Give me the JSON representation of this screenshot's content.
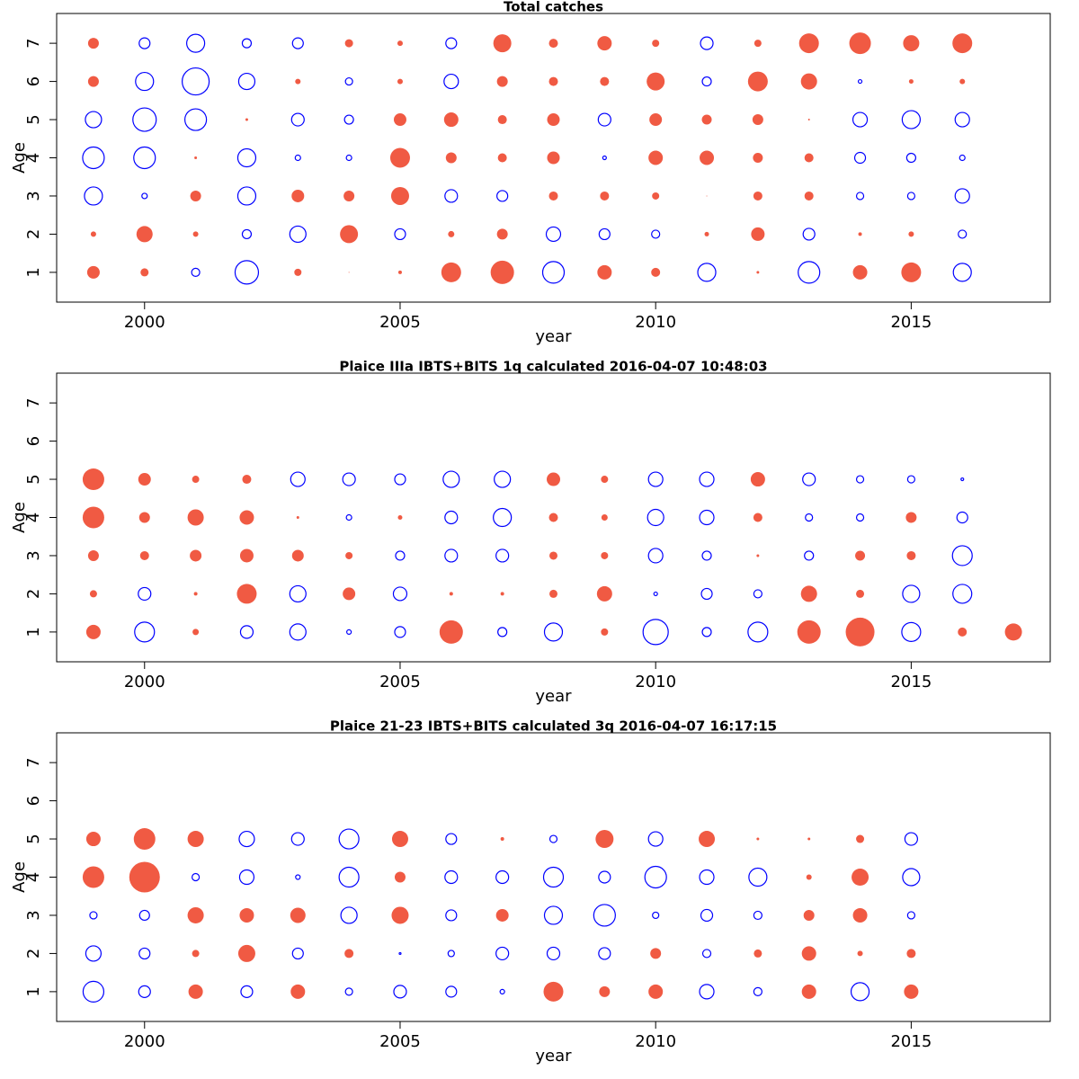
{
  "chart_data": [
    {
      "type": "bubble",
      "title": "Total catches",
      "x_label": "year",
      "y_label": "Age",
      "positive_color": "#f05a43",
      "negative_color": "#0000ff",
      "xlim": [
        1998.28,
        2017.72
      ],
      "ylim": [
        0.22,
        7.78
      ],
      "xticks": [
        2000,
        2005,
        2010,
        2015
      ],
      "yticks": [
        1,
        2,
        3,
        4,
        5,
        6,
        7
      ],
      "x": [
        1999,
        2000,
        2001,
        2002,
        2003,
        2004,
        2005,
        2006,
        2007,
        2008,
        2009,
        2010,
        2011,
        2012,
        2013,
        2014,
        2015,
        2016
      ],
      "y": [
        1,
        2,
        3,
        4,
        5,
        6,
        7
      ],
      "values": [
        [
          7,
          4.5,
          -4.5,
          -13,
          4,
          0.5,
          2,
          11,
          13,
          -12,
          8,
          5,
          -10,
          1.5,
          -12,
          8,
          11,
          -10
        ],
        [
          3,
          9,
          3,
          -5,
          -9,
          10,
          -6,
          3.5,
          6,
          -8,
          -6,
          -4.5,
          2.5,
          7.5,
          -6.5,
          2,
          3,
          -4.5
        ],
        [
          -10,
          -3,
          6,
          -10,
          7,
          6,
          10,
          -7,
          -6,
          5,
          5,
          4,
          0.5,
          5,
          5,
          -4,
          -4,
          -8
        ],
        [
          -12,
          -12,
          1.5,
          -10,
          -3,
          -3,
          11,
          6,
          5,
          7,
          -2,
          8,
          8,
          5.5,
          5,
          -6,
          -5,
          -3
        ],
        [
          -9,
          -13,
          -12,
          1.5,
          -7,
          -5,
          7,
          8,
          5,
          7,
          -7,
          7,
          5.5,
          6,
          1,
          -8,
          -10,
          -8
        ],
        [
          6,
          -10,
          -15,
          -9,
          3,
          -4,
          3,
          -8,
          6,
          5,
          5,
          10,
          -5,
          11,
          9,
          -2,
          2.5,
          3
        ],
        [
          6,
          -6,
          -10,
          -5,
          -6,
          4.5,
          3,
          -6,
          10,
          5,
          8,
          4,
          -7,
          4,
          11,
          12,
          9,
          11
        ]
      ]
    },
    {
      "type": "bubble",
      "title": "Plaice IIIa IBTS+BITS 1q calculated 2016-04-07 10:48:03",
      "x_label": "year",
      "y_label": "Age",
      "positive_color": "#f05a43",
      "negative_color": "#0000ff",
      "xlim": [
        1998.28,
        2017.72
      ],
      "ylim": [
        0.22,
        7.78
      ],
      "xticks": [
        2000,
        2005,
        2010,
        2015
      ],
      "yticks": [
        1,
        2,
        3,
        4,
        5,
        6,
        7
      ],
      "x": [
        1999,
        2000,
        2001,
        2002,
        2003,
        2004,
        2005,
        2006,
        2007,
        2008,
        2009,
        2010,
        2011,
        2012,
        2013,
        2014,
        2015,
        2016,
        2017
      ],
      "y": [
        1,
        2,
        3,
        4,
        5
      ],
      "values": [
        [
          8,
          -11,
          3.5,
          -7,
          -9,
          -2.5,
          -6,
          13,
          -5,
          -10,
          4,
          -14,
          -5,
          -11,
          13,
          16,
          -10.5,
          5,
          9.5
        ],
        [
          4,
          -7,
          2,
          11,
          -9,
          7,
          -7.5,
          2,
          2,
          4.5,
          8.5,
          -2,
          -6,
          -4.5,
          9,
          4.5,
          -9.5,
          -10.5,
          null
        ],
        [
          6,
          5,
          6.5,
          7.5,
          6.5,
          4,
          -5,
          -7,
          -7,
          4.5,
          4,
          -8,
          -5,
          1.5,
          -5,
          5.5,
          5,
          -11,
          null
        ],
        [
          12,
          6,
          9,
          8,
          1.5,
          -3,
          2.5,
          -7,
          -10,
          5,
          3.5,
          -9,
          -8,
          5,
          -4,
          -4,
          6,
          -6,
          null
        ],
        [
          12,
          7,
          4,
          5,
          -8,
          -7,
          -6,
          -9,
          -9,
          7.5,
          4,
          -8,
          -8,
          8,
          -7,
          -4,
          -4,
          -1.5,
          null
        ]
      ]
    },
    {
      "type": "bubble",
      "title": "Plaice 21-23 IBTS+BITS calculated 3q 2016-04-07 16:17:15",
      "x_label": "year",
      "y_label": "Age",
      "positive_color": "#f05a43",
      "negative_color": "#0000ff",
      "xlim": [
        1998.28,
        2017.72
      ],
      "ylim": [
        0.22,
        7.78
      ],
      "xticks": [
        2000,
        2005,
        2010,
        2015
      ],
      "yticks": [
        1,
        2,
        3,
        4,
        5,
        6,
        7
      ],
      "x": [
        1999,
        2000,
        2001,
        2002,
        2003,
        2004,
        2005,
        2006,
        2007,
        2008,
        2009,
        2010,
        2011,
        2012,
        2013,
        2014,
        2015
      ],
      "y": [
        1,
        2,
        3,
        4,
        5
      ],
      "values": [
        [
          -11.5,
          -6.5,
          8,
          -6.5,
          8,
          -4,
          -7,
          -6,
          -2.5,
          11,
          6,
          8,
          -8,
          -4.5,
          8,
          -10,
          8
        ],
        [
          -8.5,
          -6,
          4,
          9.5,
          -6,
          5,
          -1,
          -3.5,
          -7,
          -7,
          -6.5,
          6,
          -4.5,
          4.5,
          8,
          3,
          5
        ],
        [
          -4,
          -5.5,
          9,
          8,
          8.5,
          -9,
          9.5,
          -6,
          7,
          -10,
          -12,
          -3.5,
          -6.5,
          -4.5,
          6,
          8,
          -4
        ],
        [
          12,
          17,
          -4,
          -8,
          -2.5,
          -11,
          6,
          -7,
          -7,
          -11,
          -6.5,
          -12,
          -8,
          -10,
          3,
          9.5,
          -9.5
        ],
        [
          8,
          12,
          9,
          -8.5,
          -7,
          -11,
          9,
          -6,
          2,
          -4,
          10,
          -8,
          9,
          1.5,
          1.5,
          4.5,
          -7
        ]
      ]
    }
  ]
}
